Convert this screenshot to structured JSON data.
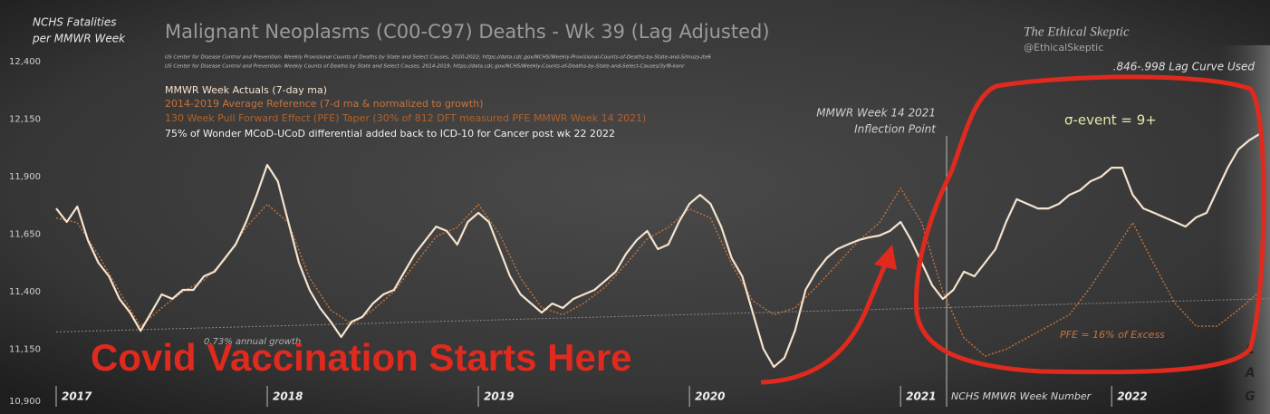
{
  "chart_data": {
    "type": "line",
    "title": "Malignant Neoplasms (C00-C97) Deaths - Wk 39 (Lag Adjusted)",
    "sources": [
      "US Center for Disease Control and Prevention: Weekly  Provisional Counts of Deaths by State and Select Causes, 2020-2022; https://data.cdc.gov/NCHS/Weekly-Provisional-Counts-of-Deaths-by-State-and-S/muzy-jte6",
      "US Center for Disease Control and Prevention: Weekly  Counts of Deaths by State and Select Causes, 2014-2019; https://data.cdc.gov/NCHS/Weekly-Counts-of-Deaths-by-State-and-Select-Causes/3yf8-kanr"
    ],
    "y_label": [
      "NCHS Fatalities",
      "per MMWR Week"
    ],
    "x_label": "NCHS MMWR Week Number",
    "brand": [
      "The Ethical Skeptic",
      "@EthicalSkeptic"
    ],
    "lag_note": ".846-.998  Lag Curve Used",
    "notes": [
      {
        "text": "130 Week Pull Forward Effect (PFE) Taper (30% of 812 DFT measured PFE MMWR Week 14 2021)",
        "color": "#b0622c"
      },
      {
        "text": "75% of Wonder MCoD-UCoD  differential added back to  ICD-10 for Cancer post wk 22 2022",
        "color": "#f2f2f2"
      }
    ],
    "inflection": [
      "MMWR Week 14  2021",
      "Inflection Point"
    ],
    "sigma": "σ-event  = 9+",
    "pfe": "PFE = 16% of Excess",
    "headline": "Covid Vaccination Starts Here",
    "lag": [
      "L",
      "A",
      "G"
    ],
    "trend": {
      "label": "0.73% annual growth",
      "x": [
        2017,
        2022.75
      ],
      "values": [
        11225,
        11370
      ],
      "color": "#8a8a8a"
    },
    "xlim": [
      2017,
      2022.75
    ],
    "xticks": [
      2017,
      2018,
      2019,
      2020,
      2021,
      2022
    ],
    "ylim": [
      10900,
      12400
    ],
    "yticks": [
      {
        "value": 10900,
        "label": "10,900"
      },
      {
        "value": 11150,
        "label": "11,150"
      },
      {
        "value": 11400,
        "label": "11,400"
      },
      {
        "value": 11650,
        "label": "11,650"
      },
      {
        "value": 11900,
        "label": "11,900"
      },
      {
        "value": 12150,
        "label": "12,150"
      },
      {
        "value": 12400,
        "label": "12,400"
      }
    ],
    "grid": false,
    "series": [
      {
        "name": "MMWR Week Actuals (7-day ma)",
        "color": "#f6e3cf",
        "dash": false,
        "x": [
          2017,
          2017.05,
          2017.1,
          2017.15,
          2017.2,
          2017.25,
          2017.3,
          2017.35,
          2017.4,
          2017.45,
          2017.5,
          2017.55,
          2017.6,
          2017.65,
          2017.7,
          2017.75,
          2017.8,
          2017.85,
          2017.9,
          2017.95,
          2018,
          2018.05,
          2018.1,
          2018.15,
          2018.2,
          2018.25,
          2018.3,
          2018.35,
          2018.4,
          2018.45,
          2018.5,
          2018.55,
          2018.6,
          2018.65,
          2018.7,
          2018.75,
          2018.8,
          2018.85,
          2018.9,
          2018.95,
          2019,
          2019.05,
          2019.1,
          2019.15,
          2019.2,
          2019.25,
          2019.3,
          2019.35,
          2019.4,
          2019.45,
          2019.5,
          2019.55,
          2019.6,
          2019.65,
          2019.7,
          2019.75,
          2019.8,
          2019.85,
          2019.9,
          2019.95,
          2020,
          2020.05,
          2020.1,
          2020.15,
          2020.2,
          2020.25,
          2020.3,
          2020.35,
          2020.4,
          2020.45,
          2020.5,
          2020.55,
          2020.6,
          2020.65,
          2020.7,
          2020.75,
          2020.8,
          2020.85,
          2020.9,
          2020.95,
          2021,
          2021.05,
          2021.1,
          2021.15,
          2021.2,
          2021.25,
          2021.3,
          2021.35,
          2021.4,
          2021.45,
          2021.5,
          2021.55,
          2021.6,
          2021.65,
          2021.7,
          2021.75,
          2021.8,
          2021.85,
          2021.9,
          2021.95,
          2022,
          2022.05,
          2022.1,
          2022.15,
          2022.2,
          2022.25,
          2022.3,
          2022.35,
          2022.4,
          2022.45,
          2022.5,
          2022.55,
          2022.6,
          2022.65,
          2022.7
        ],
        "values": [
          11762,
          11703,
          11770,
          11624,
          11526,
          11467,
          11369,
          11309,
          11230,
          11309,
          11388,
          11369,
          11408,
          11408,
          11467,
          11487,
          11546,
          11605,
          11703,
          11821,
          11951,
          11880,
          11703,
          11526,
          11408,
          11329,
          11270,
          11203,
          11270,
          11290,
          11349,
          11388,
          11408,
          11487,
          11565,
          11624,
          11683,
          11664,
          11605,
          11703,
          11743,
          11703,
          11585,
          11467,
          11388,
          11349,
          11309,
          11349,
          11329,
          11369,
          11388,
          11408,
          11447,
          11487,
          11565,
          11624,
          11664,
          11585,
          11605,
          11703,
          11782,
          11821,
          11782,
          11683,
          11546,
          11467,
          11309,
          11152,
          11073,
          11113,
          11231,
          11408,
          11487,
          11546,
          11585,
          11605,
          11624,
          11636,
          11644,
          11664,
          11703,
          11624,
          11526,
          11428,
          11369,
          11408,
          11487,
          11467,
          11526,
          11585,
          11703,
          11802,
          11782,
          11762,
          11762,
          11782,
          11821,
          11841,
          11880,
          11900,
          11939,
          11939,
          11821,
          11762,
          11743,
          11723,
          11703,
          11683,
          11723,
          11743,
          11841,
          11939,
          12018,
          12057,
          12085
        ]
      },
      {
        "name": "2014-2019 Average Reference  (7-d ma & normalized to growth)",
        "color": "#c8733a",
        "dash": true,
        "x": [
          2017,
          2017.1,
          2017.2,
          2017.3,
          2017.4,
          2017.5,
          2017.6,
          2017.7,
          2017.8,
          2017.9,
          2018,
          2018.1,
          2018.2,
          2018.3,
          2018.4,
          2018.5,
          2018.6,
          2018.7,
          2018.8,
          2018.9,
          2019,
          2019.1,
          2019.2,
          2019.3,
          2019.4,
          2019.5,
          2019.6,
          2019.7,
          2019.8,
          2019.9,
          2020,
          2020.1,
          2020.2,
          2020.3,
          2020.4,
          2020.5,
          2020.6,
          2020.7,
          2020.8,
          2020.9,
          2021,
          2021.1,
          2021.2,
          2021.3,
          2021.4,
          2021.5,
          2021.6,
          2021.7,
          2021.8,
          2021.9,
          2022,
          2022.1,
          2022.2,
          2022.3,
          2022.4,
          2022.5,
          2022.6,
          2022.7
        ],
        "values": [
          11720,
          11700,
          11560,
          11400,
          11250,
          11330,
          11400,
          11450,
          11540,
          11680,
          11780,
          11700,
          11460,
          11320,
          11260,
          11320,
          11400,
          11520,
          11640,
          11680,
          11780,
          11650,
          11460,
          11330,
          11300,
          11350,
          11420,
          11520,
          11630,
          11680,
          11760,
          11720,
          11520,
          11360,
          11300,
          11330,
          11420,
          11520,
          11620,
          11700,
          11850,
          11700,
          11400,
          11200,
          11120,
          11150,
          11200,
          11250,
          11300,
          11420,
          11560,
          11700,
          11520,
          11350,
          11250,
          11250,
          11320,
          11400
        ]
      }
    ]
  }
}
